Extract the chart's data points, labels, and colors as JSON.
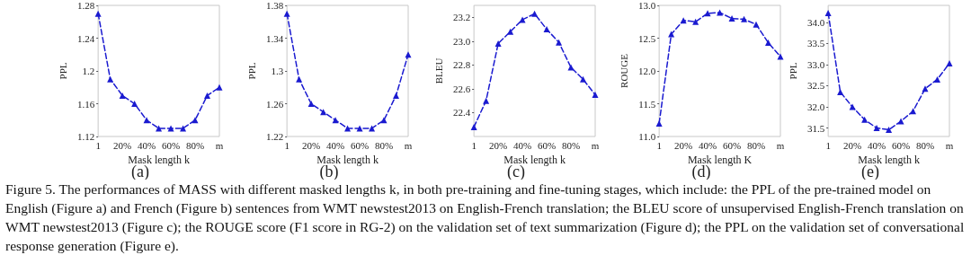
{
  "chart_data": [
    {
      "type": "line",
      "xlabel": "Mask length k",
      "ylabel": "PPL",
      "categories": [
        "1",
        null,
        "20%",
        null,
        "40%",
        null,
        "60%",
        null,
        "80%",
        null,
        "m"
      ],
      "series": [
        {
          "color": "#1a1ad0",
          "values": [
            1.27,
            1.19,
            1.17,
            1.16,
            1.14,
            1.13,
            1.13,
            1.13,
            1.14,
            1.17,
            1.18
          ]
        }
      ],
      "ylim": [
        1.12,
        1.28
      ],
      "yticks": [
        1.12,
        1.16,
        1.2,
        1.24,
        1.28
      ],
      "marker": "triangle",
      "line_style": "dashed",
      "grid": false,
      "annotations": [
        "(a)"
      ]
    },
    {
      "type": "line",
      "xlabel": "Mask length k",
      "ylabel": "PPL",
      "categories": [
        "1",
        null,
        "20%",
        null,
        "40%",
        null,
        "60%",
        null,
        "80%",
        null,
        "m"
      ],
      "series": [
        {
          "color": "#1a1ad0",
          "values": [
            1.37,
            1.29,
            1.26,
            1.25,
            1.24,
            1.23,
            1.23,
            1.23,
            1.24,
            1.27,
            1.32
          ]
        }
      ],
      "ylim": [
        1.22,
        1.38
      ],
      "yticks": [
        1.22,
        1.26,
        1.3,
        1.34,
        1.38
      ],
      "marker": "triangle",
      "line_style": "dashed",
      "grid": false,
      "annotations": [
        "(b)"
      ]
    },
    {
      "type": "line",
      "xlabel": "Mask length k",
      "ylabel": "BLEU",
      "categories": [
        "1",
        null,
        "20%",
        null,
        "40%",
        null,
        "60%",
        null,
        "80%",
        null,
        "m"
      ],
      "series": [
        {
          "color": "#1a1ad0",
          "values": [
            22.28,
            22.5,
            22.98,
            23.08,
            23.18,
            23.23,
            23.1,
            22.99,
            22.78,
            22.68,
            22.55
          ]
        }
      ],
      "ylim": [
        22.2,
        23.3
      ],
      "yticks": [
        22.4,
        22.6,
        22.8,
        {
          "value": 23,
          "label": "23.0"
        },
        23.2
      ],
      "marker": "triangle",
      "line_style": "dashed",
      "grid": false,
      "annotations": [
        "(c)"
      ]
    },
    {
      "type": "line",
      "xlabel": "Mask length K",
      "ylabel": "ROUGE",
      "categories": [
        "1",
        null,
        "20%",
        null,
        "40%",
        null,
        "60%",
        null,
        "80%",
        null,
        "m"
      ],
      "series": [
        {
          "color": "#1a1ad0",
          "values": [
            11.2,
            12.56,
            12.77,
            12.75,
            12.88,
            12.89,
            12.8,
            12.79,
            12.71,
            12.43,
            12.22
          ]
        }
      ],
      "ylim": [
        11,
        13
      ],
      "yticks": [
        {
          "value": 11,
          "label": "11.0"
        },
        11.5,
        {
          "value": 12,
          "label": "12.0"
        },
        12.5,
        {
          "value": 13,
          "label": "13.0"
        }
      ],
      "marker": "triangle",
      "line_style": "dashed",
      "grid": false,
      "annotations": [
        "(d)"
      ]
    },
    {
      "type": "line",
      "xlabel": "Mask length k",
      "ylabel": "PPL",
      "categories": [
        "1",
        null,
        "20%",
        null,
        "40%",
        null,
        "60%",
        null,
        "80%",
        null,
        "m"
      ],
      "series": [
        {
          "color": "#1a1ad0",
          "values": [
            34.22,
            32.35,
            32.0,
            31.7,
            31.5,
            31.46,
            31.66,
            31.9,
            32.43,
            32.65,
            33.03
          ]
        }
      ],
      "ylim": [
        31.3,
        34.4
      ],
      "yticks": [
        31.5,
        {
          "value": 32,
          "label": "32.0"
        },
        32.5,
        {
          "value": 33,
          "label": "33.0"
        },
        33.5,
        {
          "value": 34,
          "label": "34.0"
        }
      ],
      "marker": "triangle",
      "line_style": "dashed",
      "grid": false,
      "annotations": [
        "(e)",
        "Figure 5. The performances of MASS with different masked lengths k, in both pre-training and fine-tuning stages, which include: the PPL of the pre-trained model on English (Figure a) and French (Figure b) sentences from WMT newstest2013 on English-French translation; the BLEU score of unsupervised English-French translation on WMT newstest2013 (Figure c); the ROUGE score (F1 score in RG-2) on the validation set of text summarization (Figure d); the PPL on the validation set of conversational response generation (Figure e)."
      ]
    }
  ]
}
